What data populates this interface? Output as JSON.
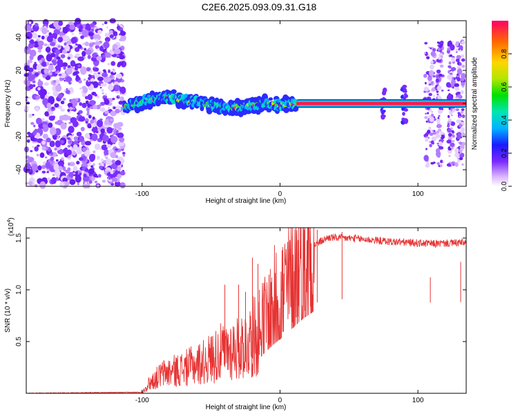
{
  "title": "C2E6.2025.093.09.31.G18",
  "chart_data": [
    {
      "type": "heatmap",
      "name": "spectrogram",
      "xlabel": "Height of straight line (km)",
      "ylabel": "Frequency (Hz)",
      "xlim": [
        -184,
        135
      ],
      "ylim": [
        -50,
        50
      ],
      "xticks": [
        -100,
        0,
        100
      ],
      "yticks": [
        -40,
        -20,
        0,
        20,
        40
      ],
      "colorbar": {
        "label": "Normalized spectral amplitude",
        "range": [
          0,
          1
        ],
        "ticks": [
          "0.0",
          "0.2",
          "0.4",
          "0.6",
          "0.8"
        ],
        "tick_values": [
          0,
          0.2,
          0.4,
          0.6,
          0.8
        ]
      },
      "regions": [
        {
          "name": "noise",
          "x_start": -184,
          "x_end": -113,
          "amplitude": "low"
        },
        {
          "name": "ridge",
          "x_start": -113,
          "x_end": 12,
          "freq_center": [
            [
              -113,
              -2
            ],
            [
              -95,
              2
            ],
            [
              -80,
              4
            ],
            [
              -60,
              1
            ],
            [
              -40,
              -3
            ],
            [
              -25,
              -2
            ],
            [
              -10,
              0
            ],
            [
              0,
              -1
            ],
            [
              12,
              0
            ]
          ],
          "amplitude": "medium-high"
        },
        {
          "name": "carrier",
          "x_start": 12,
          "x_end": 135,
          "freq_center": 0,
          "amplitude": "max"
        },
        {
          "name": "scatter",
          "x_start": 105,
          "x_end": 135,
          "amplitude": "low"
        }
      ]
    },
    {
      "type": "line",
      "name": "snr",
      "xlabel": "Height of straight line (km)",
      "ylabel": "SNR (10 * v/v)",
      "multiplier": "(x10",
      "multiplier_exp": "4",
      "multiplier_close": ")",
      "xlim": [
        -184,
        135
      ],
      "ylim": [
        0,
        1.6
      ],
      "xticks": [
        -100,
        0,
        100
      ],
      "yticks": [
        0.5,
        1.0,
        1.5
      ],
      "ytick_labels": [
        "0.5",
        "1.0",
        "1.5"
      ],
      "series": [
        {
          "name": "SNR",
          "color": "#e63333",
          "envelope": [
            [
              -184,
              0.0
            ],
            [
              -100,
              0.01
            ],
            [
              -95,
              0.1
            ],
            [
              -85,
              0.2
            ],
            [
              -70,
              0.25
            ],
            [
              -55,
              0.32
            ],
            [
              -45,
              0.4
            ],
            [
              -35,
              0.45
            ],
            [
              -25,
              0.5
            ],
            [
              -15,
              0.62
            ],
            [
              -5,
              0.85
            ],
            [
              5,
              1.05
            ],
            [
              15,
              1.28
            ],
            [
              25,
              1.45
            ],
            [
              35,
              1.52
            ],
            [
              55,
              1.51
            ],
            [
              80,
              1.48
            ],
            [
              110,
              1.46
            ],
            [
              135,
              1.47
            ]
          ],
          "spikes": [
            [
              -40,
              1.05
            ],
            [
              -30,
              1.05
            ],
            [
              -25,
              0.98
            ],
            [
              -20,
              1.31
            ],
            [
              -16,
              1.25
            ],
            [
              -15,
              1.0
            ],
            [
              -8,
              0.95
            ],
            [
              2,
              1.26
            ],
            [
              9,
              1.52
            ],
            [
              13,
              1.48
            ],
            [
              18,
              1.3
            ],
            [
              22,
              1.5
            ],
            [
              27,
              1.58
            ],
            [
              45,
              1.56
            ],
            [
              109,
              1.12
            ],
            [
              131,
              1.27
            ]
          ]
        }
      ]
    }
  ]
}
